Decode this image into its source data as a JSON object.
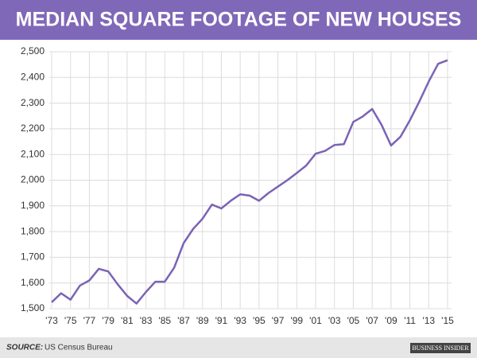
{
  "chart_data": {
    "type": "line",
    "title": "MEDIAN SQUARE FOOTAGE OF NEW HOUSES",
    "source_label": "SOURCE:",
    "source": "US Census Bureau",
    "brand": "BUSINESS INSIDER",
    "categories": [
      "'73",
      null,
      "'75",
      null,
      "'77",
      null,
      "'79",
      null,
      "'81",
      null,
      "'83",
      null,
      "'85",
      null,
      "'87",
      null,
      "'89",
      null,
      "'91",
      null,
      "'93",
      null,
      "'95",
      null,
      "'97",
      null,
      "'99",
      null,
      "'01",
      null,
      "'03",
      null,
      "'05",
      null,
      "'07",
      null,
      "'09",
      null,
      "'11",
      null,
      "'13",
      null,
      "'15"
    ],
    "values": [
      1525,
      1560,
      1535,
      1590,
      1610,
      1655,
      1645,
      1595,
      1550,
      1520,
      1565,
      1605,
      1605,
      1660,
      1755,
      1810,
      1850,
      1905,
      1890,
      1920,
      1945,
      1940,
      1920,
      1950,
      1975,
      2000,
      2028,
      2057,
      2103,
      2114,
      2137,
      2140,
      2227,
      2248,
      2277,
      2215,
      2135,
      2169,
      2233,
      2306,
      2384,
      2453,
      2467
    ],
    "color": "#7b63b5",
    "ylim": [
      1500,
      2500
    ],
    "yticks": [
      {
        "value": 1500,
        "label": "1,500"
      },
      {
        "value": 1600,
        "label": "1,600"
      },
      {
        "value": 1700,
        "label": "1,700"
      },
      {
        "value": 1800,
        "label": "1,800"
      },
      {
        "value": 1900,
        "label": "1,900"
      },
      {
        "value": 2000,
        "label": "2,000"
      },
      {
        "value": 2100,
        "label": "2,100"
      },
      {
        "value": 2200,
        "label": "2,200"
      },
      {
        "value": 2300,
        "label": "2,300"
      },
      {
        "value": 2400,
        "label": "2,400"
      },
      {
        "value": 2500,
        "label": "2,500"
      }
    ],
    "grid": true
  }
}
